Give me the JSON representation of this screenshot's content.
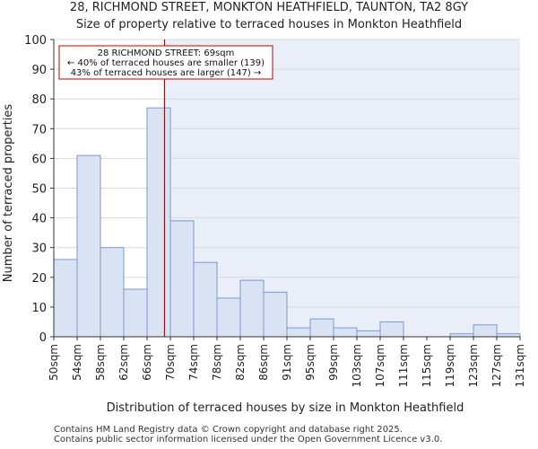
{
  "chart_data": {
    "type": "bar",
    "title_line1": "28, RICHMOND STREET, MONKTON HEATHFIELD, TAUNTON, TA2 8GY",
    "title_line2": "Size of property relative to terraced houses in Monkton Heathfield",
    "xlabel": "Distribution of terraced houses by size in Monkton Heathfield",
    "ylabel": "Number of terraced properties",
    "ylim": [
      0,
      100
    ],
    "yticks": [
      0,
      10,
      20,
      30,
      40,
      50,
      60,
      70,
      80,
      90,
      100
    ],
    "tick_labels": [
      "50sqm",
      "54sqm",
      "58sqm",
      "62sqm",
      "66sqm",
      "70sqm",
      "74sqm",
      "78sqm",
      "82sqm",
      "86sqm",
      "91sqm",
      "95sqm",
      "99sqm",
      "103sqm",
      "107sqm",
      "111sqm",
      "115sqm",
      "119sqm",
      "123sqm",
      "127sqm",
      "131sqm"
    ],
    "values": [
      26,
      61,
      30,
      16,
      77,
      39,
      25,
      13,
      19,
      15,
      3,
      6,
      3,
      2,
      5,
      0,
      0,
      1,
      4,
      1
    ],
    "bar_color": "#dae3f4",
    "bar_edge": "#7a9ad0",
    "marker": {
      "position_bins": 4.75,
      "color": "#c00000",
      "label_line1": "28 RICHMOND STREET: 69sqm",
      "label_line2": "← 40% of terraced houses are smaller (139)",
      "label_line3": "43% of terraced houses are larger (147) →"
    },
    "highlight_color": "#e9eef9"
  },
  "footer": {
    "line1": "Contains HM Land Registry data © Crown copyright and database right 2025.",
    "line2": "Contains public sector information licensed under the Open Government Licence v3.0."
  }
}
